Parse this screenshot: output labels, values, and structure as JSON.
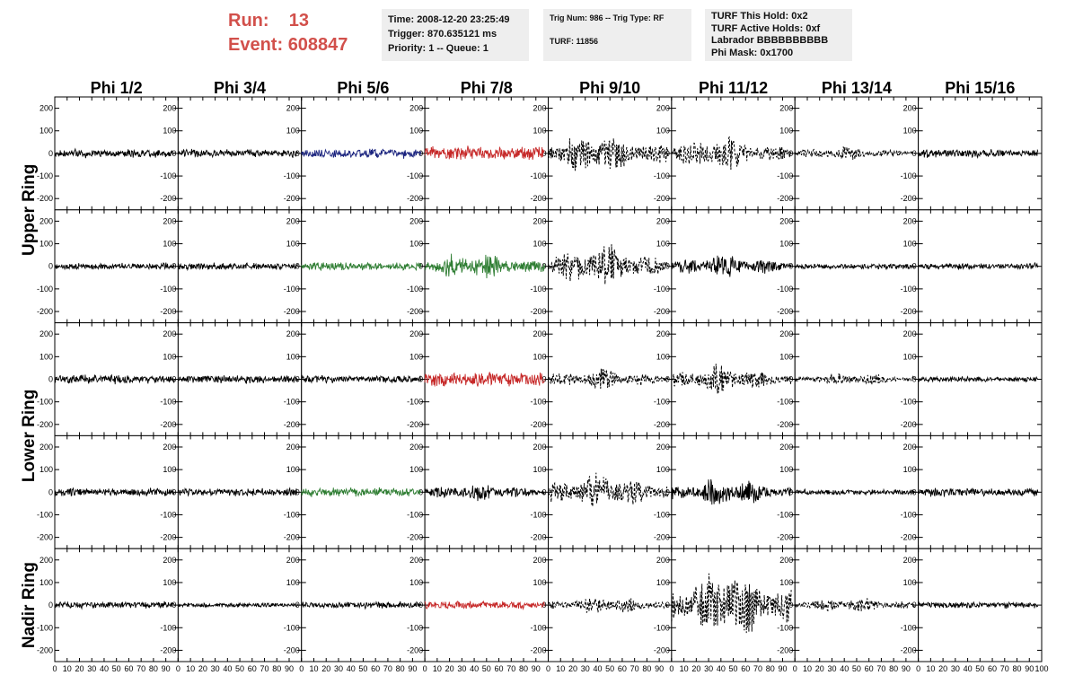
{
  "header": {
    "run_label": "Run:",
    "run_value": "13",
    "event_label": "Event:",
    "event_value": "608847",
    "info1": [
      "Time: 2008-12-20 23:25:49",
      "Trigger: 870.635121 ms",
      "Priority: 1 -- Queue: 1"
    ],
    "info2": [
      "Trig Num: 986 -- Trig Type: RF",
      "TURF: 11856"
    ],
    "info3": [
      "TURF This Hold: 0x2",
      "TURF Active Holds: 0xf",
      "Labrador BBBBBBBBBB",
      "Phi Mask: 0x1700"
    ]
  },
  "chart_data": {
    "type": "line",
    "columns": [
      "Phi 1/2",
      "Phi 3/4",
      "Phi 5/6",
      "Phi 7/8",
      "Phi 9/10",
      "Phi 11/12",
      "Phi 13/14",
      "Phi 15/16"
    ],
    "rows": [
      "Upper Ring",
      "Lower Ring",
      "Nadir Ring"
    ],
    "xlim": [
      0,
      100
    ],
    "ylim": [
      -250,
      250
    ],
    "y_ticks": [
      -200,
      -100,
      0,
      100,
      200
    ],
    "x_tick_labels": [
      "0",
      "10",
      "20",
      "30",
      "40",
      "50",
      "60",
      "70",
      "80",
      "90",
      "100"
    ],
    "panel_rows": [
      {
        "ring": "Upper Ring",
        "panels": [
          {
            "color": "#000000",
            "style": "solid",
            "amplitude": 22
          },
          {
            "color": "#000000",
            "style": "solid",
            "amplitude": 22
          },
          {
            "color": "#1a237e",
            "style": "solid",
            "amplitude": 28
          },
          {
            "color": "#c62828",
            "style": "solid",
            "amplitude": 40
          },
          {
            "color": "#000000",
            "style": "dashed",
            "amplitude": 110
          },
          {
            "color": "#000000",
            "style": "dashed",
            "amplitude": 85
          },
          {
            "color": "#000000",
            "style": "dashed",
            "amplitude": 35
          },
          {
            "color": "#000000",
            "style": "solid",
            "amplitude": 22
          }
        ]
      },
      {
        "ring": "Upper Ring",
        "panels": [
          {
            "color": "#000000",
            "style": "solid",
            "amplitude": 18
          },
          {
            "color": "#000000",
            "style": "solid",
            "amplitude": 18
          },
          {
            "color": "#2e7d32",
            "style": "solid",
            "amplitude": 22
          },
          {
            "color": "#2e7d32",
            "style": "solid",
            "amplitude": 75
          },
          {
            "color": "#000000",
            "style": "dashed",
            "amplitude": 110
          },
          {
            "color": "#000000",
            "style": "solid",
            "amplitude": 65
          },
          {
            "color": "#000000",
            "style": "solid",
            "amplitude": 15
          },
          {
            "color": "#000000",
            "style": "solid",
            "amplitude": 18
          }
        ]
      },
      {
        "ring": "Lower Ring",
        "panels": [
          {
            "color": "#000000",
            "style": "solid",
            "amplitude": 25
          },
          {
            "color": "#000000",
            "style": "solid",
            "amplitude": 22
          },
          {
            "color": "#000000",
            "style": "solid",
            "amplitude": 20
          },
          {
            "color": "#c62828",
            "style": "solid",
            "amplitude": 40
          },
          {
            "color": "#000000",
            "style": "dashed",
            "amplitude": 55
          },
          {
            "color": "#000000",
            "style": "dashed",
            "amplitude": 80
          },
          {
            "color": "#000000",
            "style": "dashed",
            "amplitude": 35
          },
          {
            "color": "#000000",
            "style": "solid",
            "amplitude": 15
          }
        ]
      },
      {
        "ring": "Lower Ring",
        "panels": [
          {
            "color": "#000000",
            "style": "solid",
            "amplitude": 22
          },
          {
            "color": "#000000",
            "style": "solid",
            "amplitude": 20
          },
          {
            "color": "#2e7d32",
            "style": "solid",
            "amplitude": 25
          },
          {
            "color": "#000000",
            "style": "solid",
            "amplitude": 50
          },
          {
            "color": "#000000",
            "style": "dashed",
            "amplitude": 95
          },
          {
            "color": "#000000",
            "style": "solid",
            "amplitude": 75
          },
          {
            "color": "#000000",
            "style": "solid",
            "amplitude": 15
          },
          {
            "color": "#000000",
            "style": "solid",
            "amplitude": 22
          }
        ]
      },
      {
        "ring": "Nadir Ring",
        "panels": [
          {
            "color": "#000000",
            "style": "solid",
            "amplitude": 18
          },
          {
            "color": "#000000",
            "style": "solid",
            "amplitude": 12
          },
          {
            "color": "#000000",
            "style": "solid",
            "amplitude": 18
          },
          {
            "color": "#c62828",
            "style": "solid",
            "amplitude": 22
          },
          {
            "color": "#000000",
            "style": "dashed",
            "amplitude": 45
          },
          {
            "color": "#000000",
            "style": "dashed",
            "amplitude": 190
          },
          {
            "color": "#000000",
            "style": "dashed",
            "amplitude": 40
          },
          {
            "color": "#000000",
            "style": "solid",
            "amplitude": 18
          }
        ]
      }
    ]
  }
}
